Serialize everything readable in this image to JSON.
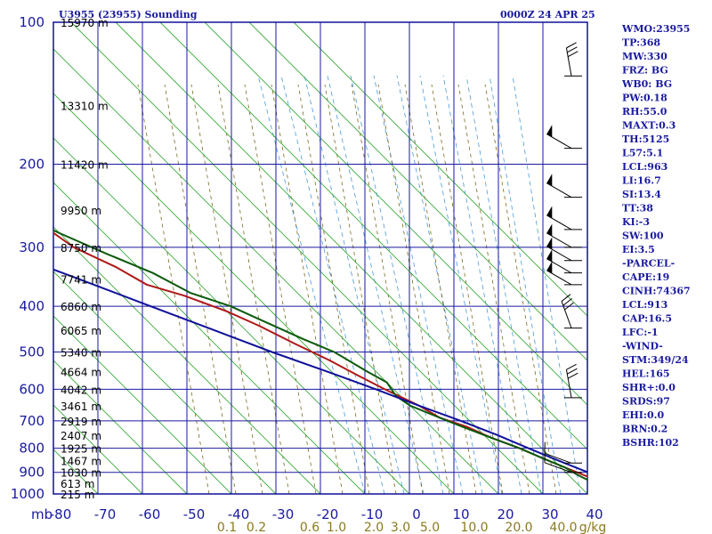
{
  "header": {
    "station": "U3955 (23955) Sounding",
    "time": "0000Z 24 APR 25"
  },
  "axis": {
    "pressure_unit": "mb",
    "mixing_unit": "g/kg"
  },
  "chart_data": {
    "type": "line",
    "title": "U3955 (23955) Sounding",
    "x": "temperature (C)",
    "y": "pressure (mb)",
    "xlim": [
      -80,
      0
    ],
    "ylim": [
      1000,
      100
    ],
    "yscale": "log",
    "pressure_ticks": [
      100,
      200,
      300,
      400,
      500,
      600,
      700,
      800,
      900,
      1000
    ],
    "temperature_ticks": [
      -80,
      -70,
      -60,
      -50,
      -40,
      -30,
      -20,
      -10,
      0,
      10,
      20,
      30,
      40
    ],
    "temperature_tick_labels": [
      "-80",
      "-70",
      "-60",
      "-50",
      "-40",
      "-30",
      "-20",
      "-10",
      "0",
      "10",
      "20",
      "30",
      "40"
    ],
    "mixing_ratio_labels": [
      "0.1",
      "0.2",
      "0.6",
      "1.0",
      "2.0",
      "3.0",
      "5.0",
      "10.0",
      "20.0",
      "40.0"
    ],
    "heights": [
      {
        "p": 100,
        "h": "15970 m"
      },
      {
        "p": 150,
        "h": "13310 m"
      },
      {
        "p": 200,
        "h": "11420 m"
      },
      {
        "p": 250,
        "h": "9950 m"
      },
      {
        "p": 300,
        "h": "8750 m"
      },
      {
        "p": 350,
        "h": "7741 m"
      },
      {
        "p": 400,
        "h": "6860 m"
      },
      {
        "p": 450,
        "h": "6065 m"
      },
      {
        "p": 500,
        "h": "5340 m"
      },
      {
        "p": 550,
        "h": "4664 m"
      },
      {
        "p": 600,
        "h": "4042 m"
      },
      {
        "p": 650,
        "h": "3461 m"
      },
      {
        "p": 700,
        "h": "2919 m"
      },
      {
        "p": 750,
        "h": "2407 m"
      },
      {
        "p": 800,
        "h": "1925 m"
      },
      {
        "p": 850,
        "h": "1467 m"
      },
      {
        "p": 900,
        "h": "1030 m"
      },
      {
        "p": 950,
        "h": "613 m"
      },
      {
        "p": 1000,
        "h": "215 m"
      }
    ],
    "series": [
      {
        "color": "#b01818",
        "points": [
          {
            "p": 1004,
            "t": 8
          },
          {
            "p": 990,
            "t": 6
          },
          {
            "p": 960,
            "t": 6
          },
          {
            "p": 920,
            "t": 4
          },
          {
            "p": 880,
            "t": 1
          },
          {
            "p": 840,
            "t": -2
          },
          {
            "p": 800,
            "t": -5
          },
          {
            "p": 760,
            "t": -9
          },
          {
            "p": 720,
            "t": -12
          },
          {
            "p": 690,
            "t": -16
          },
          {
            "p": 650,
            "t": -18
          },
          {
            "p": 600,
            "t": -22
          },
          {
            "p": 560,
            "t": -25
          },
          {
            "p": 520,
            "t": -28
          },
          {
            "p": 480,
            "t": -32
          },
          {
            "p": 440,
            "t": -36
          },
          {
            "p": 410,
            "t": -40
          },
          {
            "p": 380,
            "t": -46
          },
          {
            "p": 360,
            "t": -52
          },
          {
            "p": 330,
            "t": -55
          },
          {
            "p": 300,
            "t": -60
          },
          {
            "p": 270,
            "t": -62
          },
          {
            "p": 240,
            "t": -64
          },
          {
            "p": 200,
            "t": -68
          },
          {
            "p": 170,
            "t": -71
          },
          {
            "p": 160,
            "t": -71
          },
          {
            "p": 140,
            "t": -76
          },
          {
            "p": 120,
            "t": -80
          },
          {
            "p": 100,
            "t": -86
          }
        ]
      },
      {
        "color": "#0a5a0a",
        "points": [
          {
            "p": 1004,
            "t": 6
          },
          {
            "p": 985,
            "t": 4
          },
          {
            "p": 950,
            "t": 4
          },
          {
            "p": 910,
            "t": 2
          },
          {
            "p": 880,
            "t": 1
          },
          {
            "p": 840,
            "t": -2
          },
          {
            "p": 800,
            "t": -5
          },
          {
            "p": 760,
            "t": -9
          },
          {
            "p": 720,
            "t": -13
          },
          {
            "p": 690,
            "t": -16
          },
          {
            "p": 650,
            "t": -20
          },
          {
            "p": 620,
            "t": -21
          },
          {
            "p": 580,
            "t": -20
          },
          {
            "p": 550,
            "t": -22
          },
          {
            "p": 500,
            "t": -25
          },
          {
            "p": 470,
            "t": -29
          },
          {
            "p": 430,
            "t": -34
          },
          {
            "p": 400,
            "t": -38
          },
          {
            "p": 375,
            "t": -44
          },
          {
            "p": 340,
            "t": -48
          },
          {
            "p": 310,
            "t": -54
          },
          {
            "p": 280,
            "t": -60
          },
          {
            "p": 250,
            "t": -66
          },
          {
            "p": 200,
            "t": -76
          },
          {
            "p": 160,
            "t": -82
          },
          {
            "p": 130,
            "t": -88
          },
          {
            "p": 100,
            "t": -96
          }
        ]
      },
      {
        "color": "#10109a",
        "points": [
          {
            "p": 1004,
            "t": 10
          },
          {
            "p": 980,
            "t": 8
          },
          {
            "p": 950,
            "t": 7
          },
          {
            "p": 900,
            "t": 5
          },
          {
            "p": 850,
            "t": 1
          },
          {
            "p": 800,
            "t": -3
          },
          {
            "p": 750,
            "t": -7
          },
          {
            "p": 700,
            "t": -12
          },
          {
            "p": 650,
            "t": -18
          },
          {
            "p": 600,
            "t": -24
          },
          {
            "p": 550,
            "t": -31
          },
          {
            "p": 500,
            "t": -39
          },
          {
            "p": 450,
            "t": -47
          },
          {
            "p": 400,
            "t": -56
          },
          {
            "p": 350,
            "t": -66
          },
          {
            "p": 300,
            "t": -78
          }
        ]
      }
    ]
  },
  "stats": [
    "WMO:23955",
    "TP:368",
    "MW:330",
    "FRZ: BG",
    "WB0: BG",
    "PW:0.18",
    "RH:55.0",
    "MAXT:0.3",
    "TH:5125",
    "L57:5.1",
    "LCL:963",
    "LI:16.7",
    "SI:13.4",
    "TT:38",
    "KI:-3",
    "SW:100",
    "EI:3.5",
    "-PARCEL-",
    "CAPE:19",
    "CINH:74367",
    "LCL:913",
    "CAP:16.5",
    "LFC:-1",
    "-WIND-",
    "STM:349/24",
    "HEL:165",
    "SHR+:0.0",
    "SRDS:97",
    "EHI:0.0",
    "BRN:0.2",
    "BSHR:102"
  ],
  "wind_barbs": [
    {
      "p": 130,
      "dir": 350,
      "kt": 30
    },
    {
      "p": 185,
      "dir": 300,
      "kt": 50
    },
    {
      "p": 235,
      "dir": 300,
      "kt": 50
    },
    {
      "p": 275,
      "dir": 300,
      "kt": 50
    },
    {
      "p": 300,
      "dir": 300,
      "kt": 50
    },
    {
      "p": 320,
      "dir": 300,
      "kt": 50
    },
    {
      "p": 340,
      "dir": 300,
      "kt": 50
    },
    {
      "p": 360,
      "dir": 300,
      "kt": 50
    },
    {
      "p": 445,
      "dir": 340,
      "kt": 30
    },
    {
      "p": 625,
      "dir": 350,
      "kt": 30
    },
    {
      "p": 860,
      "dir": 290,
      "kt": 15
    },
    {
      "p": 900,
      "dir": 290,
      "kt": 15
    }
  ],
  "colors": {
    "frame": "#10109a",
    "grid": "#1a1aa0",
    "isotherm": "#3aaa3a",
    "dry_adiabat": "#7a6a20",
    "moist_adiabat": "#4a9ad8"
  }
}
